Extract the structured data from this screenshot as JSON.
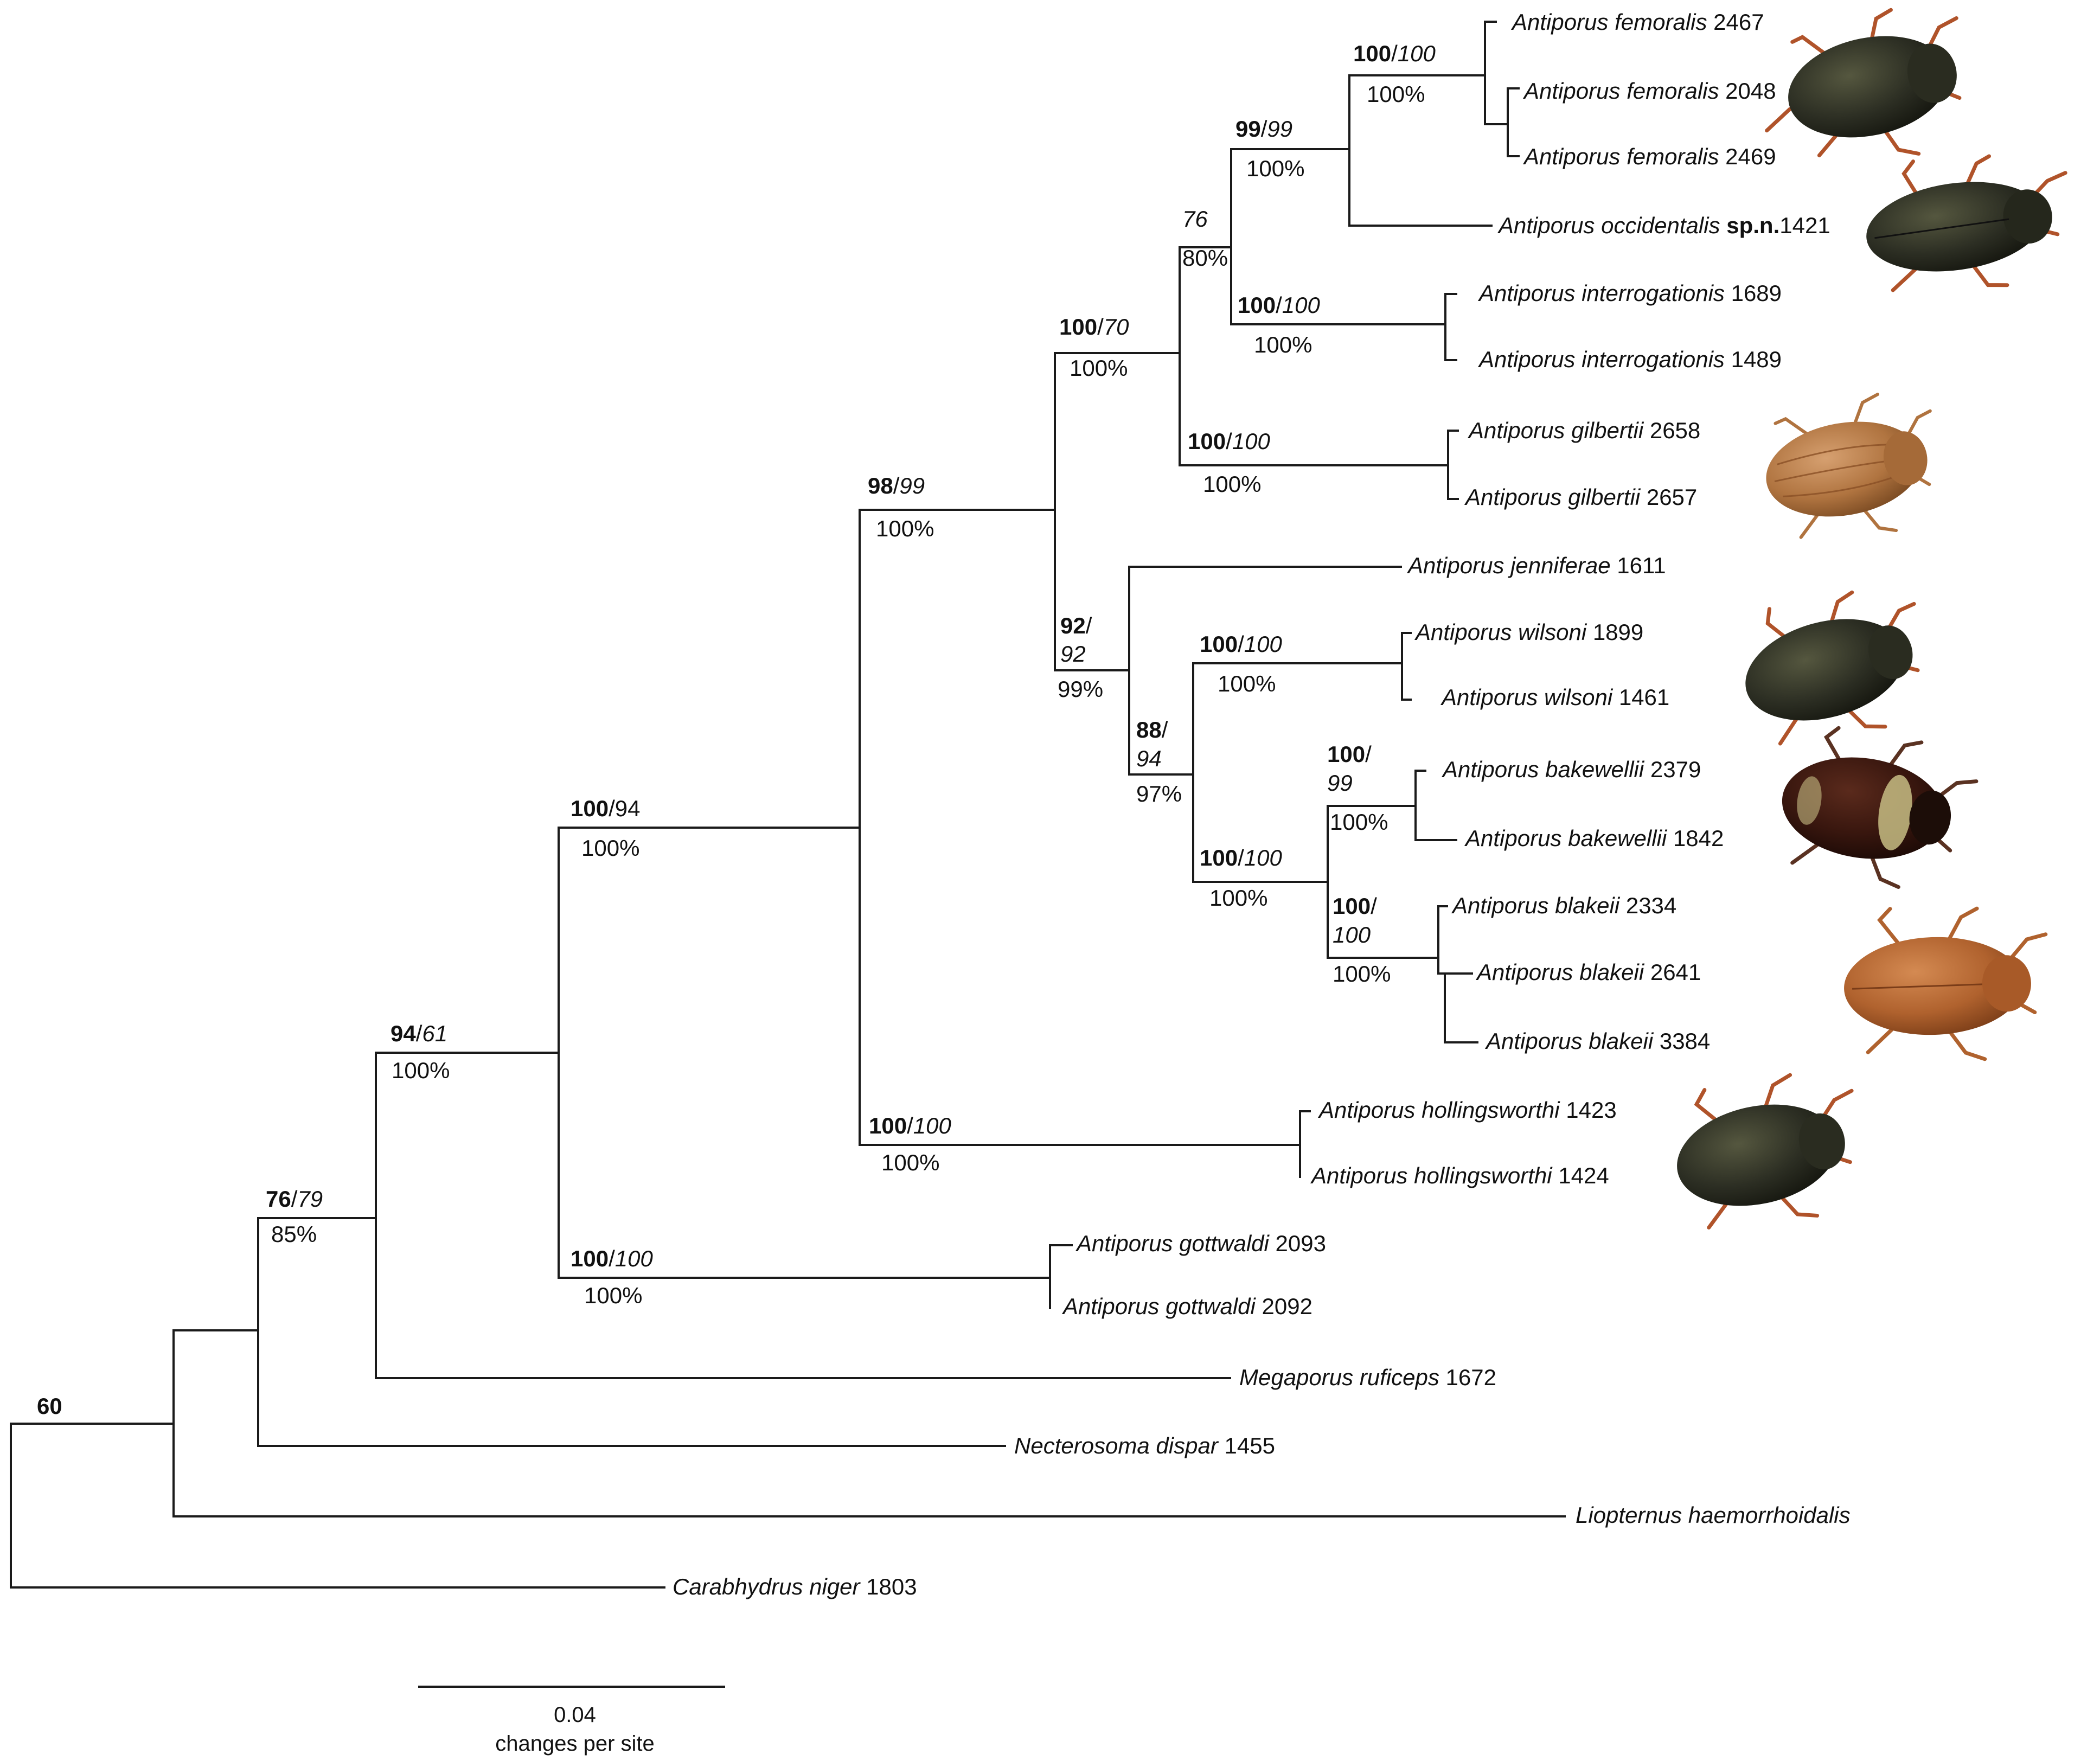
{
  "taxa": [
    {
      "id": "fem2467",
      "name": "Antiporus femoralis",
      "suffix": " 2467"
    },
    {
      "id": "fem2048",
      "name": "Antiporus femoralis",
      "suffix": " 2048"
    },
    {
      "id": "fem2469",
      "name": "Antiporus femoralis",
      "suffix": " 2469"
    },
    {
      "id": "occ1421",
      "name": "Antiporus occidentalis",
      "suffix": " ",
      "bold": "sp.n.",
      "suffix2": "1421"
    },
    {
      "id": "int1689",
      "name": "Antiporus interrogationis",
      "suffix": " 1689"
    },
    {
      "id": "int1489",
      "name": "Antiporus interrogationis",
      "suffix": " 1489"
    },
    {
      "id": "gil2658",
      "name": "Antiporus gilbertii",
      "suffix": " 2658"
    },
    {
      "id": "gil2657",
      "name": "Antiporus gilbertii",
      "suffix": " 2657"
    },
    {
      "id": "jen1611",
      "name": "Antiporus jenniferae",
      "suffix": " 1611"
    },
    {
      "id": "wil1899",
      "name": "Antiporus wilsoni",
      "suffix": " 1899"
    },
    {
      "id": "wil1461",
      "name": "Antiporus wilsoni",
      "suffix": " 1461"
    },
    {
      "id": "bak2379",
      "name": "Antiporus bakewellii",
      "suffix": " 2379"
    },
    {
      "id": "bak1842",
      "name": "Antiporus bakewellii",
      "suffix": " 1842"
    },
    {
      "id": "bla2334",
      "name": "Antiporus blakeii",
      "suffix": " 2334"
    },
    {
      "id": "bla2641",
      "name": "Antiporus blakeii",
      "suffix": " 2641"
    },
    {
      "id": "bla3384",
      "name": "Antiporus blakeii",
      "suffix": " 3384"
    },
    {
      "id": "hol1423",
      "name": "Antiporus hollingsworthi",
      "suffix": " 1423"
    },
    {
      "id": "hol1424",
      "name": "Antiporus hollingsworthi",
      "suffix": " 1424"
    },
    {
      "id": "got2093",
      "name": "Antiporus gottwaldi",
      "suffix": " 2093"
    },
    {
      "id": "got2092",
      "name": "Antiporus gottwaldi",
      "suffix": " 2092"
    },
    {
      "id": "meg1672",
      "name": "Megaporus ruficeps",
      "suffix": " 1672"
    },
    {
      "id": "nec1455",
      "name": "Necterosoma dispar",
      "suffix": " 1455"
    },
    {
      "id": "lio",
      "name": "Liopternus haemorrhoidalis",
      "suffix": ""
    },
    {
      "id": "car1803",
      "name": "Carabhydrus niger",
      "suffix": " 1803"
    }
  ],
  "nodes": [
    {
      "id": "n-root",
      "bold": "60",
      "slash": "",
      "italic": "",
      "pp": ""
    },
    {
      "id": "n-meg",
      "bold": "76",
      "slash": "/",
      "italic": "79",
      "pp": "85%"
    },
    {
      "id": "n-ant",
      "bold": "94",
      "slash": "/",
      "italic": "61",
      "pp": "100%"
    },
    {
      "id": "n-core",
      "bold": "100",
      "slash": "/",
      "italic": "94",
      "pp": "100%",
      "italic_plain": true
    },
    {
      "id": "n-got",
      "bold": "100",
      "slash": "/",
      "italic": "100",
      "pp": "100%"
    },
    {
      "id": "n-big",
      "bold": "98",
      "slash": "/",
      "italic": "99",
      "pp": "100%"
    },
    {
      "id": "n-hol",
      "bold": "100",
      "slash": "/",
      "italic": "100",
      "pp": "100%"
    },
    {
      "id": "n-upper",
      "bold": "100",
      "slash": "/",
      "italic": "70",
      "pp": "100%"
    },
    {
      "id": "n-femint",
      "bold": "",
      "slash": "",
      "italic": "76",
      "pp": "80%"
    },
    {
      "id": "n-femocc",
      "bold": "99",
      "slash": "/",
      "italic": "99",
      "pp": "100%"
    },
    {
      "id": "n-fem",
      "bold": "100",
      "slash": "/",
      "italic": "100",
      "pp": "100%"
    },
    {
      "id": "n-int",
      "bold": "100",
      "slash": "/",
      "italic": "100",
      "pp": "100%"
    },
    {
      "id": "n-gil",
      "bold": "100",
      "slash": "/",
      "italic": "100",
      "pp": "100%"
    },
    {
      "id": "n-lower",
      "bold": "92",
      "slash": "/",
      "italic": "92",
      "pp": "99%",
      "wrap": true
    },
    {
      "id": "n-wbb",
      "bold": "88",
      "slash": "/",
      "italic": "94",
      "pp": "97%",
      "wrap": true
    },
    {
      "id": "n-wil",
      "bold": "100",
      "slash": "/",
      "italic": "100",
      "pp": "100%"
    },
    {
      "id": "n-bb",
      "bold": "100",
      "slash": "/",
      "italic": "100",
      "pp": "100%"
    },
    {
      "id": "n-bak",
      "bold": "100",
      "slash": "/",
      "italic": "99",
      "pp": "100%",
      "wrap": true
    },
    {
      "id": "n-bla",
      "bold": "100",
      "slash": "/",
      "italic": "100",
      "pp": "100%",
      "wrap": true
    }
  ],
  "scale_bar": {
    "value": "0.04",
    "unit": "changes per site"
  },
  "colors": {
    "dark_beetle": "#2a2d22",
    "brown_beetle": "#a0622e",
    "leg": "#b0532a",
    "branch": "#1a1a1a"
  }
}
